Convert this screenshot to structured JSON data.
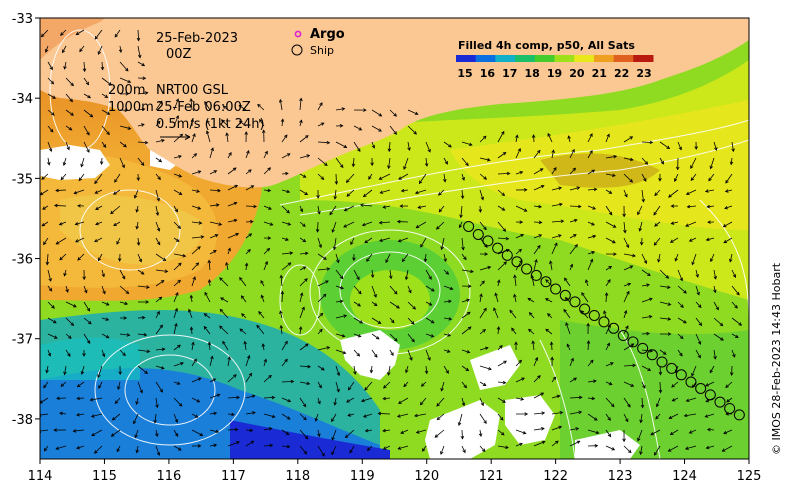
{
  "map": {
    "date": "25-Feb-2023",
    "hour": "00Z",
    "legend": {
      "argo_label": "Argo",
      "ship_label": "Ship"
    },
    "depth_lines": [
      {
        "depth": "200m",
        "text": "NRT00 GSL"
      },
      {
        "depth": "1000m",
        "text": "25-Feb 06:00Z"
      }
    ],
    "velocity_scale": "0.5m/s (1kt 24h)",
    "colorbar": {
      "title": "Filled 4h comp, p50, All Sats",
      "ticks": [
        "15",
        "16",
        "17",
        "18",
        "19",
        "20",
        "21",
        "22",
        "23"
      ],
      "colors": [
        "#1a2bd6",
        "#0a6fe0",
        "#12b0c8",
        "#1bbf6a",
        "#44cc2c",
        "#9ee01a",
        "#e8e81a",
        "#f0a020",
        "#e06020",
        "#b81a10"
      ]
    },
    "x_ticks": [
      "114",
      "115",
      "116",
      "117",
      "118",
      "119",
      "120",
      "121",
      "122",
      "123",
      "124",
      "125"
    ],
    "y_ticks": [
      "-33",
      "-34",
      "-35",
      "-36",
      "-37",
      "-38"
    ],
    "credit": "© IMOS 28-Feb-2023 14:43 Hobart",
    "ship_track": [
      [
        120.65,
        -35.6
      ],
      [
        120.8,
        -35.7
      ],
      [
        120.95,
        -35.78
      ],
      [
        121.1,
        -35.87
      ],
      [
        121.25,
        -35.96
      ],
      [
        121.4,
        -36.04
      ],
      [
        121.55,
        -36.13
      ],
      [
        121.7,
        -36.21
      ],
      [
        121.85,
        -36.29
      ],
      [
        122.0,
        -36.38
      ],
      [
        122.15,
        -36.46
      ],
      [
        122.3,
        -36.54
      ],
      [
        122.45,
        -36.63
      ],
      [
        122.6,
        -36.71
      ],
      [
        122.75,
        -36.79
      ],
      [
        122.9,
        -36.87
      ],
      [
        123.05,
        -36.96
      ],
      [
        123.2,
        -37.04
      ],
      [
        123.35,
        -37.12
      ],
      [
        123.5,
        -37.2
      ],
      [
        123.65,
        -37.29
      ],
      [
        123.8,
        -37.37
      ],
      [
        123.95,
        -37.45
      ],
      [
        124.1,
        -37.54
      ],
      [
        124.25,
        -37.62
      ],
      [
        124.4,
        -37.7
      ],
      [
        124.55,
        -37.79
      ],
      [
        124.7,
        -37.87
      ],
      [
        124.85,
        -37.95
      ]
    ]
  }
}
